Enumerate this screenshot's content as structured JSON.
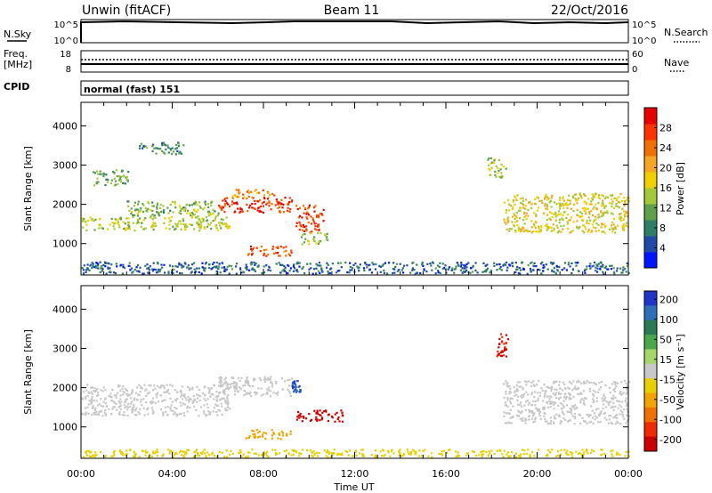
{
  "header": {
    "radar": "Unwin (fitACF)",
    "beam": "Beam 11",
    "date": "22/Oct/2016"
  },
  "panels": {
    "nsky": {
      "label": "N.Sky",
      "ticks_left": [
        "10^5",
        "10^0"
      ],
      "ticks_right": [
        "10^5",
        "10^0"
      ],
      "right_label": "N.Search"
    },
    "freq": {
      "label_lines": [
        "Freq.",
        "[MHz]"
      ],
      "ticks_left": [
        "18",
        "8"
      ],
      "ticks_right": [
        "60",
        "0"
      ],
      "right_label": "Nave"
    },
    "cpid": {
      "label": "CPID",
      "value": "normal (fast) 151"
    }
  },
  "colors": {
    "power": [
      "#0015ff",
      "#1f4aa8",
      "#2e7d66",
      "#5fa04a",
      "#a3c93a",
      "#f0d000",
      "#f5a623",
      "#f07000",
      "#ff3300",
      "#e80000"
    ],
    "velocity": [
      "#1f35c8",
      "#2f6fb8",
      "#2c7a55",
      "#4aa84a",
      "#a6d66a",
      "#c8c8c8",
      "#e8d000",
      "#f2a300",
      "#f07000",
      "#ef2a00",
      "#cc0000"
    ]
  },
  "chart_data": [
    {
      "type": "heatmap",
      "name": "power",
      "xlabel": "Time UT",
      "ylabel": "Slant Range [km]",
      "xlim": [
        0,
        24
      ],
      "ylim": [
        200,
        4600
      ],
      "xticks": [
        "00:00",
        "04:00",
        "08:00",
        "12:00",
        "16:00",
        "20:00",
        "00:00"
      ],
      "yticks": [
        1000,
        2000,
        3000,
        4000
      ],
      "colorbar": {
        "label": "Power [dB]",
        "ticks": [
          4,
          8,
          12,
          16,
          20,
          24,
          28
        ],
        "range": [
          0,
          32
        ]
      },
      "regions": [
        {
          "t0": 0.0,
          "t1": 6.5,
          "r0": 1350,
          "r1": 1700,
          "value": 15
        },
        {
          "t0": 2.0,
          "t1": 6.0,
          "r0": 1700,
          "r1": 2100,
          "value": 13
        },
        {
          "t0": 6.0,
          "t1": 9.3,
          "r0": 1800,
          "r1": 2200,
          "value": 28
        },
        {
          "t0": 6.5,
          "t1": 8.5,
          "r0": 2200,
          "r1": 2400,
          "value": 22
        },
        {
          "t0": 9.4,
          "t1": 10.6,
          "r0": 1300,
          "r1": 2000,
          "value": 27
        },
        {
          "t0": 7.2,
          "t1": 9.2,
          "r0": 700,
          "r1": 950,
          "value": 26
        },
        {
          "t0": 9.6,
          "t1": 10.8,
          "r0": 1000,
          "r1": 1300,
          "value": 14
        },
        {
          "t0": 2.5,
          "t1": 4.5,
          "r0": 3300,
          "r1": 3600,
          "value": 9
        },
        {
          "t0": 0.5,
          "t1": 2.2,
          "r0": 2500,
          "r1": 2900,
          "value": 12
        },
        {
          "t0": 17.8,
          "t1": 18.6,
          "r0": 2700,
          "r1": 3200,
          "value": 14
        },
        {
          "t0": 18.5,
          "t1": 24.0,
          "r0": 1300,
          "r1": 2300,
          "value": 17
        },
        {
          "t0": 0.0,
          "t1": 24.0,
          "r0": 250,
          "r1": 550,
          "value": 6
        }
      ]
    },
    {
      "type": "heatmap",
      "name": "velocity",
      "xlabel": "Time UT",
      "ylabel": "Slant Range [km]",
      "xlim": [
        0,
        24
      ],
      "ylim": [
        200,
        4600
      ],
      "xticks": [
        "00:00",
        "04:00",
        "08:00",
        "12:00",
        "16:00",
        "20:00",
        "00:00"
      ],
      "yticks": [
        1000,
        2000,
        3000,
        4000
      ],
      "colorbar": {
        "label": "Velocity [m s⁻¹]",
        "ticks": [
          200,
          100,
          50,
          15,
          -15,
          -50,
          -100,
          -200
        ]
      },
      "regions": [
        {
          "t0": 0.0,
          "t1": 6.5,
          "r0": 1300,
          "r1": 2100,
          "value": 0
        },
        {
          "t0": 6.0,
          "t1": 9.3,
          "r0": 1800,
          "r1": 2300,
          "value": 0
        },
        {
          "t0": 9.4,
          "t1": 11.5,
          "r0": 1150,
          "r1": 1450,
          "value": -220
        },
        {
          "t0": 9.2,
          "t1": 9.6,
          "r0": 1900,
          "r1": 2200,
          "value": 200
        },
        {
          "t0": 7.2,
          "t1": 9.2,
          "r0": 700,
          "r1": 950,
          "value": -80
        },
        {
          "t0": 18.2,
          "t1": 18.7,
          "r0": 2800,
          "r1": 3400,
          "value": -200
        },
        {
          "t0": 18.5,
          "t1": 24.0,
          "r0": 1100,
          "r1": 2200,
          "value": 0
        },
        {
          "t0": 0.0,
          "t1": 24.0,
          "r0": 250,
          "r1": 450,
          "value": -30
        }
      ]
    }
  ]
}
